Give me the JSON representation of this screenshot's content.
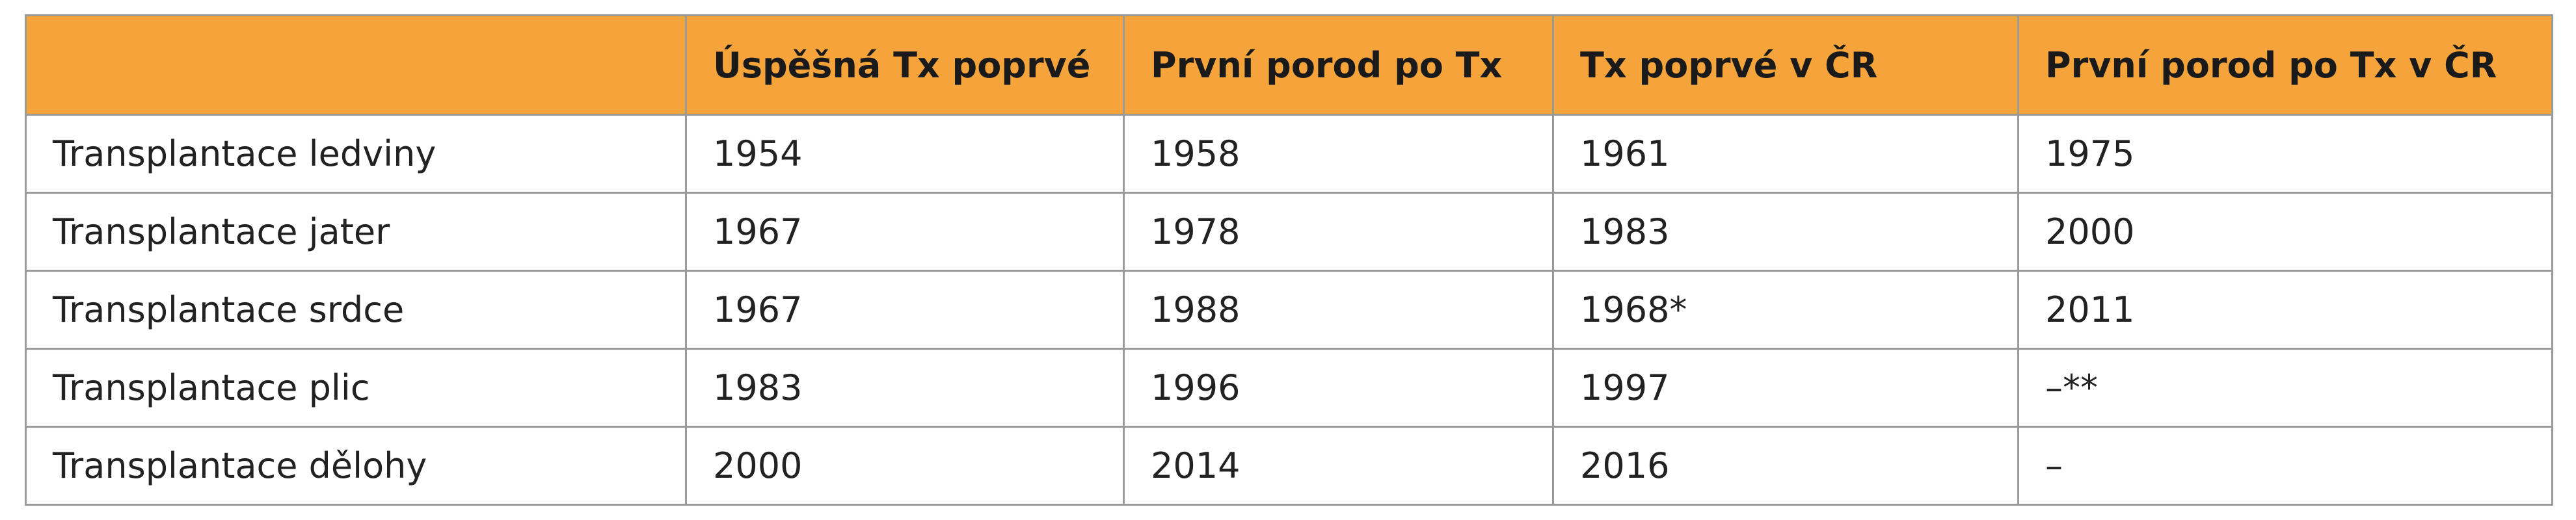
{
  "table": {
    "header": [
      "Úspěšná Tx poprvé",
      "První porod po Tx",
      "Tx poprvé v ČR",
      "První porod po Tx v ČR"
    ],
    "rows": [
      [
        "Transplantace ledviny",
        "1954",
        "1958",
        "1961",
        "1975"
      ],
      [
        "Transplantace jater",
        "1967",
        "1978",
        "1983",
        "2000"
      ],
      [
        "Transplantace srdce",
        "1967",
        "1988",
        "1968*",
        "2011"
      ],
      [
        "Transplantace plic",
        "1983",
        "1996",
        "1997",
        "–**"
      ],
      [
        "Transplantace dělohy",
        "2000",
        "2014",
        "2016",
        "–"
      ]
    ]
  }
}
